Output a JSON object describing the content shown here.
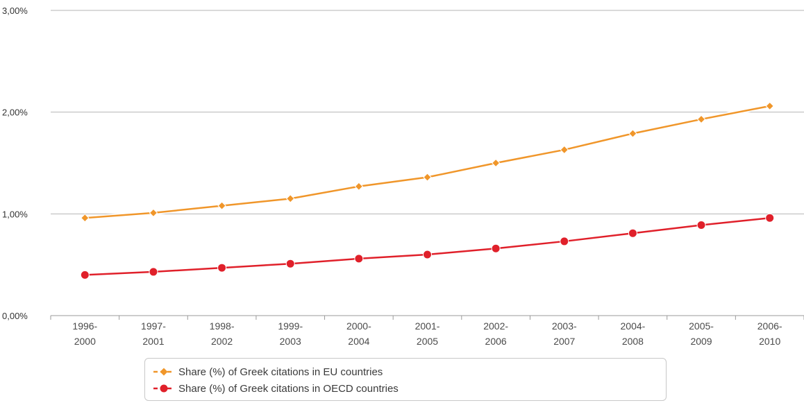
{
  "chart_data": {
    "type": "line",
    "categories": [
      [
        "1996-",
        "2000"
      ],
      [
        "1997-",
        "2001"
      ],
      [
        "1998-",
        "2002"
      ],
      [
        "1999-",
        "2003"
      ],
      [
        "2000-",
        "2004"
      ],
      [
        "2001-",
        "2005"
      ],
      [
        "2002-",
        "2006"
      ],
      [
        "2003-",
        "2007"
      ],
      [
        "2004-",
        "2008"
      ],
      [
        "2005-",
        "2009"
      ],
      [
        "2006-",
        "2010"
      ]
    ],
    "y_ticks": [
      "0,00%",
      "1,00%",
      "2,00%",
      "3,00%"
    ],
    "ylim": [
      0,
      3
    ],
    "grid": true,
    "legend_position": "bottom",
    "series": [
      {
        "name": "Share (%) of Greek citations in EU countries",
        "color": "#f0962a",
        "marker": "diamond",
        "values": [
          0.96,
          1.01,
          1.08,
          1.15,
          1.27,
          1.36,
          1.5,
          1.63,
          1.79,
          1.93,
          2.06
        ]
      },
      {
        "name": "Share (%) of Greek citations in OECD countries",
        "color": "#e0202a",
        "marker": "circle",
        "values": [
          0.4,
          0.43,
          0.47,
          0.51,
          0.56,
          0.6,
          0.66,
          0.73,
          0.81,
          0.89,
          0.96
        ]
      }
    ]
  }
}
